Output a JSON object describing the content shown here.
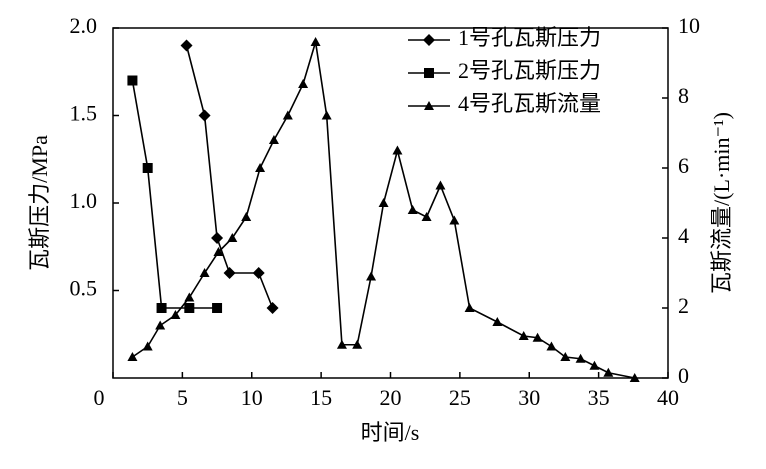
{
  "chart_data": {
    "type": "line",
    "x_label": "时间/s",
    "y_label": "瓦斯压力/MPa",
    "y2_label": "瓦斯流量/(L·min⁻¹)",
    "xlim": [
      0,
      40
    ],
    "xticks": [
      0,
      5,
      10,
      15,
      20,
      25,
      30,
      35,
      40
    ],
    "ylim": [
      0,
      2
    ],
    "yticks": [
      0.5,
      {
        "value": 1,
        "label": "1.0"
      },
      1.5,
      {
        "value": 2,
        "label": "2.0"
      }
    ],
    "y2lim": [
      0,
      10
    ],
    "y2ticks": [
      0,
      2,
      4,
      6,
      8,
      10
    ],
    "legend": "top-right",
    "series": [
      {
        "name": "1号孔瓦斯压力",
        "color": "#000000",
        "marker": "diamond",
        "x": [
          5.3,
          6.6,
          7.5,
          8.4,
          10.5,
          11.5
        ],
        "values": [
          1.9,
          1.5,
          0.8,
          0.6,
          0.6,
          0.4
        ]
      },
      {
        "name": "2号孔瓦斯压力",
        "color": "#000000",
        "marker": "square",
        "x": [
          1.4,
          2.5,
          3.5,
          5.5,
          7.5
        ],
        "values": [
          1.7,
          1.2,
          0.4,
          0.4,
          0.4
        ]
      },
      {
        "name": "4号孔瓦斯流量",
        "color": "#000000",
        "marker": "triangle",
        "axis": "y2",
        "x": [
          1.4,
          2.5,
          3.4,
          4.5,
          5.5,
          6.6,
          7.6,
          8.6,
          9.6,
          10.6,
          11.6,
          12.6,
          13.7,
          14.6,
          15.4,
          16.5,
          17.6,
          18.6,
          19.5,
          20.5,
          21.6,
          22.6,
          23.6,
          24.6,
          25.7,
          27.7,
          29.6,
          30.6,
          31.6,
          32.6,
          33.7,
          34.7,
          35.7,
          37.6
        ],
        "values": [
          0.6,
          0.9,
          1.5,
          1.8,
          2.3,
          3.0,
          3.6,
          4.0,
          4.6,
          6.0,
          6.8,
          7.5,
          8.4,
          9.6,
          7.5,
          0.95,
          0.95,
          2.9,
          5.0,
          6.5,
          4.8,
          4.6,
          5.5,
          4.5,
          2.0,
          1.6,
          1.2,
          1.15,
          0.9,
          0.6,
          0.55,
          0.35,
          0.15,
          0
        ]
      }
    ]
  }
}
